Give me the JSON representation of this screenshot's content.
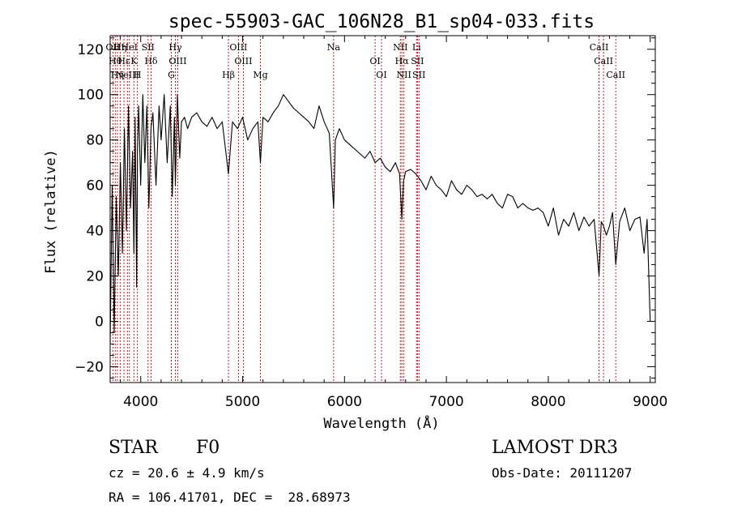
{
  "chart_data": {
    "type": "line",
    "title": "spec-55903-GAC_106N28_B1_sp04-033.fits",
    "xlabel": "Wavelength (Å)",
    "ylabel": "Flux (relative)",
    "xlim": [
      3700,
      9050
    ],
    "ylim": [
      -27,
      126
    ],
    "xticks": [
      4000,
      5000,
      6000,
      7000,
      8000,
      9000
    ],
    "yticks": [
      -20,
      0,
      20,
      40,
      60,
      80,
      100,
      120
    ],
    "grid": false,
    "series": [
      {
        "name": "flux",
        "x": [
          3700,
          3720,
          3740,
          3760,
          3780,
          3800,
          3820,
          3840,
          3860,
          3880,
          3900,
          3920,
          3933,
          3945,
          3960,
          3968,
          3980,
          4000,
          4020,
          4040,
          4060,
          4080,
          4101,
          4120,
          4150,
          4180,
          4200,
          4230,
          4260,
          4290,
          4310,
          4330,
          4340,
          4360,
          4383,
          4400,
          4430,
          4460,
          4500,
          4550,
          4600,
          4650,
          4700,
          4750,
          4800,
          4861,
          4900,
          4950,
          5000,
          5050,
          5100,
          5150,
          5175,
          5200,
          5250,
          5300,
          5350,
          5400,
          5450,
          5500,
          5550,
          5600,
          5650,
          5700,
          5750,
          5800,
          5850,
          5893,
          5910,
          5950,
          6000,
          6050,
          6100,
          6150,
          6200,
          6250,
          6300,
          6350,
          6400,
          6450,
          6500,
          6540,
          6563,
          6580,
          6600,
          6650,
          6700,
          6750,
          6800,
          6850,
          6900,
          6950,
          7000,
          7050,
          7100,
          7150,
          7200,
          7250,
          7300,
          7350,
          7400,
          7450,
          7500,
          7550,
          7600,
          7650,
          7700,
          7750,
          7800,
          7850,
          7900,
          7950,
          8000,
          8050,
          8100,
          8150,
          8200,
          8250,
          8300,
          8350,
          8400,
          8450,
          8498,
          8520,
          8542,
          8570,
          8600,
          8630,
          8662,
          8700,
          8750,
          8800,
          8850,
          8900,
          8940,
          8970,
          9000
        ],
        "y": [
          -10,
          60,
          -5,
          55,
          20,
          70,
          30,
          85,
          40,
          95,
          50,
          75,
          30,
          90,
          15,
          75,
          95,
          60,
          100,
          70,
          95,
          50,
          85,
          92,
          60,
          95,
          80,
          100,
          70,
          95,
          55,
          90,
          60,
          100,
          72,
          88,
          90,
          85,
          90,
          92,
          88,
          86,
          90,
          85,
          88,
          65,
          88,
          85,
          90,
          80,
          85,
          88,
          70,
          90,
          88,
          92,
          95,
          100,
          97,
          94,
          92,
          90,
          88,
          85,
          95,
          88,
          83,
          50,
          80,
          85,
          80,
          78,
          76,
          74,
          72,
          75,
          70,
          72,
          68,
          66,
          70,
          65,
          45,
          62,
          66,
          67,
          65,
          62,
          58,
          64,
          60,
          58,
          55,
          62,
          58,
          56,
          60,
          58,
          55,
          56,
          54,
          56,
          52,
          50,
          56,
          55,
          50,
          52,
          50,
          49,
          50,
          48,
          42,
          50,
          38,
          45,
          42,
          48,
          40,
          46,
          42,
          45,
          20,
          44,
          42,
          38,
          42,
          48,
          25,
          44,
          50,
          40,
          45,
          46,
          30,
          45,
          0
        ]
      }
    ],
    "lines": [
      {
        "x": 3727,
        "label": "OII"
      },
      {
        "x": 3750,
        "label": "Hθ"
      },
      {
        "x": 3771,
        "label": "Hη"
      },
      {
        "x": 3798,
        "label": "Hη"
      },
      {
        "x": 3835,
        "label": "Hε"
      },
      {
        "x": 3869,
        "label": "NeIII"
      },
      {
        "x": 3889,
        "label": "HeI"
      },
      {
        "x": 3933,
        "label": "K"
      },
      {
        "x": 3968,
        "label": "H"
      },
      {
        "x": 4072,
        "label": "SII"
      },
      {
        "x": 4101,
        "label": "Hδ"
      },
      {
        "x": 4300,
        "label": "G"
      },
      {
        "x": 4340,
        "label": "Hγ"
      },
      {
        "x": 4363,
        "label": "OIII"
      },
      {
        "x": 4861,
        "label": "Hβ"
      },
      {
        "x": 4959,
        "label": "OIII"
      },
      {
        "x": 5007,
        "label": "OIII"
      },
      {
        "x": 5175,
        "label": "Mg"
      },
      {
        "x": 5893,
        "label": "Na"
      },
      {
        "x": 6300,
        "label": "OI"
      },
      {
        "x": 6363,
        "label": "OI"
      },
      {
        "x": 6548,
        "label": "NII"
      },
      {
        "x": 6563,
        "label": "Hα"
      },
      {
        "x": 6583,
        "label": "NII"
      },
      {
        "x": 6707,
        "label": "Li"
      },
      {
        "x": 6716,
        "label": "SII"
      },
      {
        "x": 6731,
        "label": "SII"
      },
      {
        "x": 8498,
        "label": "CaII"
      },
      {
        "x": 8542,
        "label": "CaII"
      },
      {
        "x": 8662,
        "label": "CaII"
      }
    ]
  },
  "labels": {
    "class": "STAR",
    "subclass": "F0",
    "survey": "LAMOST DR3",
    "cz": "cz = 20.6 ± 4.9 km/s",
    "obsdate": "Obs-Date: 20111207",
    "radec": "RA = 106.41701, DEC =  28.68973"
  },
  "colors": {
    "line": "#000000",
    "marker": "#cc0000",
    "background": "#ffffff"
  }
}
